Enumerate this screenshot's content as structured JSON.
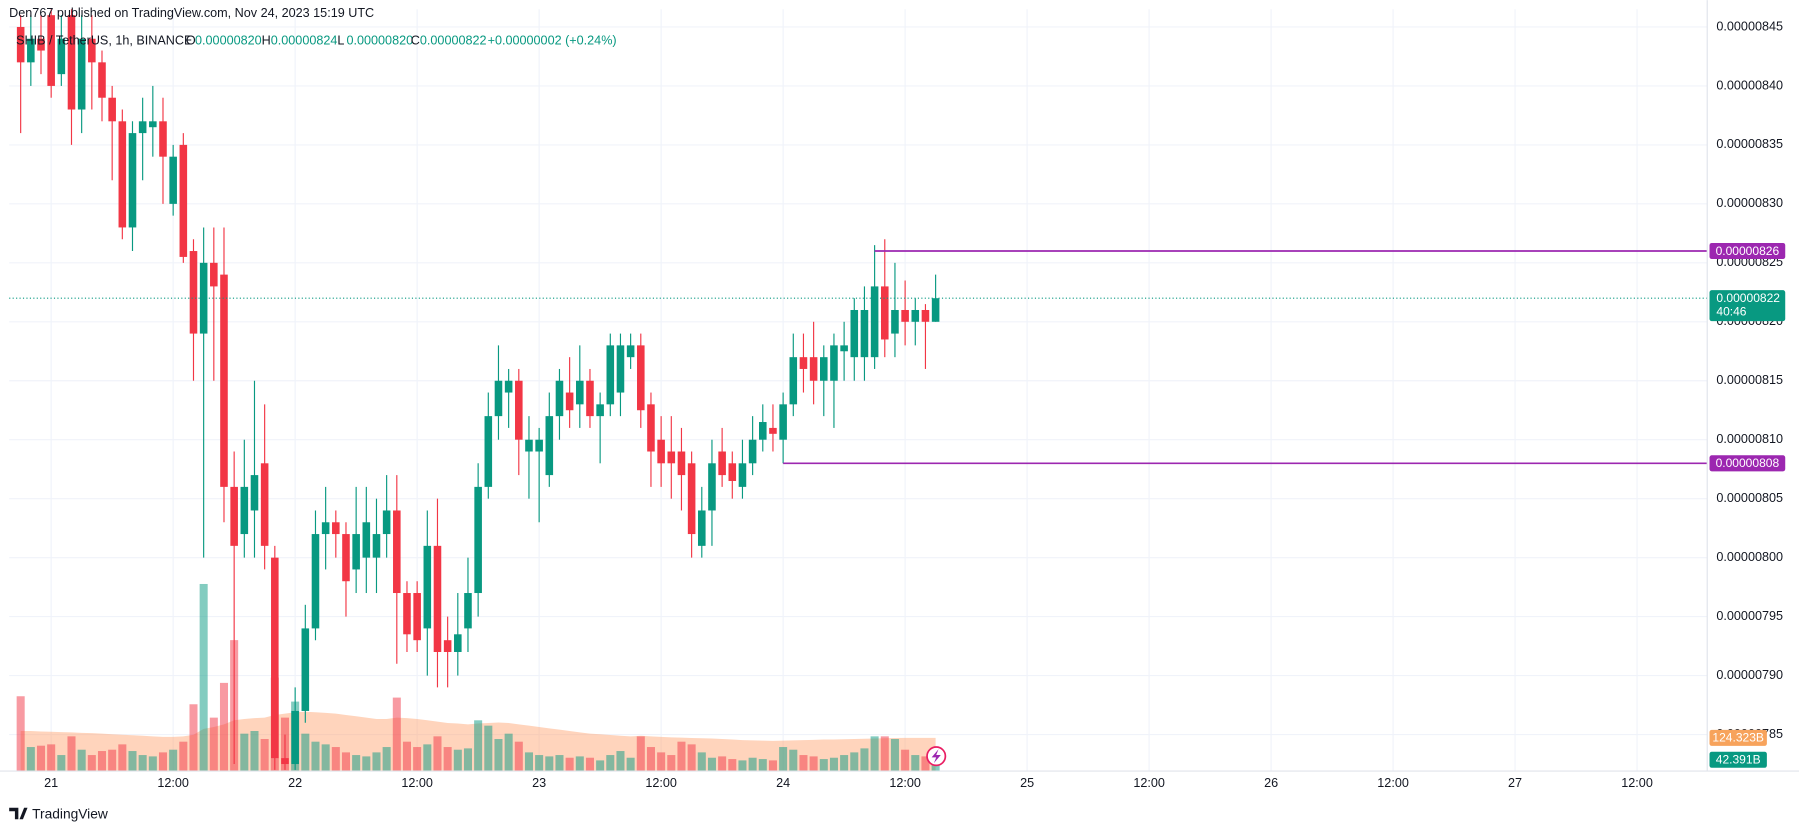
{
  "header": {
    "published": "Den767 published on TradingView.com, Nov 24, 2023 15:19 UTC"
  },
  "legend": {
    "symbol": "SHIB / TetherUS, 1h, BINANCE",
    "ohlc": [
      {
        "label": "O",
        "value": "0.00000820"
      },
      {
        "label": "H",
        "value": "0.00000824"
      },
      {
        "label": "L",
        "value": "0.00000820"
      },
      {
        "label": "C",
        "value": "0.00000822"
      }
    ],
    "change": "+0.00000002 (+0.24%)"
  },
  "chart_data": {
    "type": "candlestick",
    "up_color": "#089981",
    "down_color": "#f23645",
    "grid": true,
    "open": [
      8.45e-06,
      8.42e-06,
      8.44e-06,
      8.46e-06,
      8.41e-06,
      8.46e-06,
      8.38e-06,
      8.44e-06,
      8.42e-06,
      8.39e-06,
      8.37e-06,
      8.28e-06,
      8.36e-06,
      8.365e-06,
      8.37e-06,
      8.3e-06,
      8.35e-06,
      8.26e-06,
      8.19e-06,
      8.25e-06,
      8.24e-06,
      8.06e-06,
      8.02e-06,
      8.04e-06,
      8.08e-06,
      8e-06,
      7.83e-06,
      7.825e-06,
      7.87e-06,
      7.94e-06,
      8.02e-06,
      8.03e-06,
      8.02e-06,
      7.99e-06,
      8e-06,
      8e-06,
      8.02e-06,
      8.04e-06,
      7.97e-06,
      7.97e-06,
      7.94e-06,
      8.01e-06,
      7.93e-06,
      7.92e-06,
      7.94e-06,
      7.97e-06,
      8.06e-06,
      8.12e-06,
      8.14e-06,
      8.15e-06,
      8.09e-06,
      8.09e-06,
      8.07e-06,
      8.12e-06,
      8.14e-06,
      8.13e-06,
      8.15e-06,
      8.12e-06,
      8.13e-06,
      8.14e-06,
      8.17e-06,
      8.18e-06,
      8.13e-06,
      8.1e-06,
      8.09e-06,
      8.09e-06,
      8.08e-06,
      8.01e-06,
      8.04e-06,
      8.09e-06,
      8.08e-06,
      8.06e-06,
      8.08e-06,
      8.1e-06,
      8.11e-06,
      8.1e-06,
      8.13e-06,
      8.17e-06,
      8.17e-06,
      8.15e-06,
      8.15e-06,
      8.175e-06,
      8.17e-06,
      8.17e-06,
      8.17e-06,
      8.23e-06,
      8.19e-06,
      8.21e-06,
      8.2e-06,
      8.21e-06,
      8.2e-06
    ],
    "high": [
      8.46e-06,
      8.46e-06,
      8.46e-06,
      8.465e-06,
      8.46e-06,
      8.465e-06,
      8.46e-06,
      8.46e-06,
      8.43e-06,
      8.4e-06,
      8.38e-06,
      8.37e-06,
      8.39e-06,
      8.4e-06,
      8.39e-06,
      8.35e-06,
      8.36e-06,
      8.27e-06,
      8.28e-06,
      8.28e-06,
      8.28e-06,
      8.09e-06,
      8.1e-06,
      8.15e-06,
      8.13e-06,
      8.01e-06,
      7.85e-06,
      7.89e-06,
      7.96e-06,
      8.04e-06,
      8.06e-06,
      8.04e-06,
      8.03e-06,
      8.06e-06,
      8.06e-06,
      8.05e-06,
      8.07e-06,
      8.07e-06,
      7.98e-06,
      7.98e-06,
      8.04e-06,
      8.05e-06,
      7.95e-06,
      7.97e-06,
      8e-06,
      8.08e-06,
      8.14e-06,
      8.18e-06,
      8.16e-06,
      8.16e-06,
      8.12e-06,
      8.11e-06,
      8.14e-06,
      8.16e-06,
      8.17e-06,
      8.18e-06,
      8.16e-06,
      8.14e-06,
      8.19e-06,
      8.19e-06,
      8.19e-06,
      8.19e-06,
      8.14e-06,
      8.12e-06,
      8.12e-06,
      8.11e-06,
      8.09e-06,
      8.06e-06,
      8.1e-06,
      8.11e-06,
      8.09e-06,
      8.1e-06,
      8.12e-06,
      8.13e-06,
      8.13e-06,
      8.14e-06,
      8.19e-06,
      8.19e-06,
      8.2e-06,
      8.18e-06,
      8.19e-06,
      8.2e-06,
      8.22e-06,
      8.23e-06,
      8.265e-06,
      8.27e-06,
      8.25e-06,
      8.235e-06,
      8.22e-06,
      8.215e-06,
      8.24e-06
    ],
    "low": [
      8.36e-06,
      8.4e-06,
      8.41e-06,
      8.39e-06,
      8.4e-06,
      8.35e-06,
      8.36e-06,
      8.38e-06,
      8.37e-06,
      8.32e-06,
      8.27e-06,
      8.26e-06,
      8.32e-06,
      8.34e-06,
      8.3e-06,
      8.29e-06,
      8.25e-06,
      8.15e-06,
      8e-06,
      8.15e-06,
      8.03e-06,
      7.825e-06,
      8e-06,
      8e-06,
      7.99e-06,
      7.82e-06,
      7.82e-06,
      7.82e-06,
      7.86e-06,
      7.93e-06,
      7.99e-06,
      8e-06,
      7.95e-06,
      7.97e-06,
      7.97e-06,
      7.97e-06,
      8e-06,
      7.91e-06,
      7.92e-06,
      7.92e-06,
      7.9e-06,
      7.89e-06,
      7.89e-06,
      7.9e-06,
      7.92e-06,
      7.95e-06,
      8.05e-06,
      8.1e-06,
      8.11e-06,
      8.07e-06,
      8.05e-06,
      8.03e-06,
      8.06e-06,
      8.1e-06,
      8.11e-06,
      8.11e-06,
      8.11e-06,
      8.08e-06,
      8.12e-06,
      8.12e-06,
      8.16e-06,
      8.11e-06,
      8.06e-06,
      8.06e-06,
      8.05e-06,
      8.04e-06,
      8e-06,
      8e-06,
      8.01e-06,
      8.06e-06,
      8.05e-06,
      8.05e-06,
      8.07e-06,
      8.09e-06,
      8.09e-06,
      8.08e-06,
      8.12e-06,
      8.14e-06,
      8.13e-06,
      8.12e-06,
      8.11e-06,
      8.15e-06,
      8.15e-06,
      8.15e-06,
      8.16e-06,
      8.17e-06,
      8.17e-06,
      8.18e-06,
      8.18e-06,
      8.16e-06,
      8.2e-06
    ],
    "close": [
      8.42e-06,
      8.44e-06,
      8.43e-06,
      8.4e-06,
      8.44e-06,
      8.38e-06,
      8.44e-06,
      8.42e-06,
      8.39e-06,
      8.37e-06,
      8.28e-06,
      8.36e-06,
      8.37e-06,
      8.37e-06,
      8.34e-06,
      8.34e-06,
      8.255e-06,
      8.19e-06,
      8.25e-06,
      8.23e-06,
      8.06e-06,
      8.01e-06,
      8.06e-06,
      8.07e-06,
      8.01e-06,
      7.83e-06,
      7.825e-06,
      7.87e-06,
      7.94e-06,
      8.02e-06,
      8.03e-06,
      8.02e-06,
      7.98e-06,
      8.02e-06,
      8.03e-06,
      8.02e-06,
      8.04e-06,
      7.97e-06,
      7.935e-06,
      7.93e-06,
      8.01e-06,
      7.92e-06,
      7.92e-06,
      7.935e-06,
      7.97e-06,
      8.06e-06,
      8.12e-06,
      8.15e-06,
      8.15e-06,
      8.1e-06,
      8.1e-06,
      8.1e-06,
      8.12e-06,
      8.15e-06,
      8.125e-06,
      8.15e-06,
      8.12e-06,
      8.13e-06,
      8.18e-06,
      8.18e-06,
      8.18e-06,
      8.125e-06,
      8.09e-06,
      8.08e-06,
      8.08e-06,
      8.07e-06,
      8.02e-06,
      8.04e-06,
      8.08e-06,
      8.07e-06,
      8.065e-06,
      8.08e-06,
      8.1e-06,
      8.115e-06,
      8.105e-06,
      8.13e-06,
      8.17e-06,
      8.16e-06,
      8.15e-06,
      8.17e-06,
      8.18e-06,
      8.18e-06,
      8.21e-06,
      8.21e-06,
      8.23e-06,
      8.185e-06,
      8.21e-06,
      8.2e-06,
      8.21e-06,
      8.2e-06,
      8.22e-06
    ],
    "ylim": [
      7.819e-06,
      8.465e-06
    ],
    "yticks": [
      {
        "value": 8.45e-06,
        "label": "0.00000845"
      },
      {
        "value": 8.4e-06,
        "label": "0.00000840"
      },
      {
        "value": 8.35e-06,
        "label": "0.00000835"
      },
      {
        "value": 8.3e-06,
        "label": "0.00000830"
      },
      {
        "value": 8.25e-06,
        "label": "0.00000825"
      },
      {
        "value": 8.2e-06,
        "label": "0.00000820"
      },
      {
        "value": 8.15e-06,
        "label": "0.00000815"
      },
      {
        "value": 8.1e-06,
        "label": "0.00000810"
      },
      {
        "value": 8.05e-06,
        "label": "0.00000805"
      },
      {
        "value": 8e-06,
        "label": "0.00000800"
      },
      {
        "value": 7.95e-06,
        "label": "0.00000795"
      },
      {
        "value": 7.9e-06,
        "label": "0.00000790"
      },
      {
        "value": 7.85e-06,
        "label": "0.00000785"
      }
    ],
    "xlim": [
      -1.13,
      165.9
    ],
    "xticks": [
      {
        "value": 3,
        "label": "21"
      },
      {
        "value": 15,
        "label": "12:00"
      },
      {
        "value": 27,
        "label": "22"
      },
      {
        "value": 39,
        "label": "12:00"
      },
      {
        "value": 51,
        "label": "23"
      },
      {
        "value": 63,
        "label": "12:00"
      },
      {
        "value": 75,
        "label": "24"
      },
      {
        "value": 87,
        "label": "12:00"
      },
      {
        "value": 99,
        "label": "25"
      },
      {
        "value": 111,
        "label": "12:00"
      },
      {
        "value": 123,
        "label": "26"
      },
      {
        "value": 135,
        "label": "12:00"
      },
      {
        "value": 147,
        "label": "27"
      },
      {
        "value": 159,
        "label": "12:00"
      }
    ],
    "volume": {
      "ylim": [
        0,
        2850
      ],
      "values": [
        280,
        90,
        95,
        100,
        60,
        130,
        80,
        60,
        75,
        80,
        100,
        75,
        60,
        55,
        70,
        80,
        110,
        250,
        700,
        200,
        330,
        490,
        140,
        150,
        120,
        350,
        200,
        260,
        140,
        110,
        100,
        90,
        70,
        60,
        55,
        70,
        90,
        275,
        110,
        90,
        100,
        130,
        90,
        80,
        85,
        190,
        170,
        120,
        140,
        110,
        70,
        60,
        55,
        60,
        50,
        55,
        50,
        40,
        60,
        75,
        50,
        130,
        90,
        70,
        60,
        110,
        100,
        70,
        50,
        55,
        45,
        40,
        50,
        45,
        40,
        90,
        80,
        60,
        55,
        45,
        50,
        60,
        70,
        85,
        130,
        130,
        120,
        80,
        60,
        55,
        42.391
      ],
      "value_label": "42.391B",
      "ma": [
        150,
        150,
        148,
        147,
        146,
        145,
        143,
        142,
        140,
        138,
        136,
        134,
        132,
        130,
        128,
        128,
        130,
        136,
        158,
        165,
        175,
        190,
        195,
        198,
        200,
        210,
        215,
        220,
        222,
        220,
        218,
        215,
        210,
        205,
        200,
        195,
        195,
        200,
        198,
        195,
        190,
        185,
        180,
        178,
        175,
        178,
        180,
        182,
        180,
        175,
        170,
        165,
        160,
        155,
        150,
        145,
        140,
        138,
        135,
        132,
        130,
        132,
        130,
        128,
        126,
        125,
        124,
        123,
        122,
        120,
        118,
        116,
        115,
        114,
        113,
        114,
        115,
        116,
        117,
        118,
        118,
        119,
        120,
        121,
        122,
        123,
        124,
        124.5,
        124.5,
        124.4,
        124.323
      ],
      "ma_label": "124.323B",
      "ma_color": "#ff9f6b"
    },
    "current_price": {
      "value": 8.22e-06,
      "label": "0.00000822",
      "countdown": "40:46"
    },
    "hlines": [
      {
        "value": 8.26e-06,
        "label": "0.00000826",
        "start": 84,
        "color": "#9c27b0"
      },
      {
        "value": 8.08e-06,
        "label": "0.00000808",
        "start": 75,
        "color": "#9c27b0"
      }
    ]
  },
  "footer": {
    "brand": "TradingView"
  }
}
